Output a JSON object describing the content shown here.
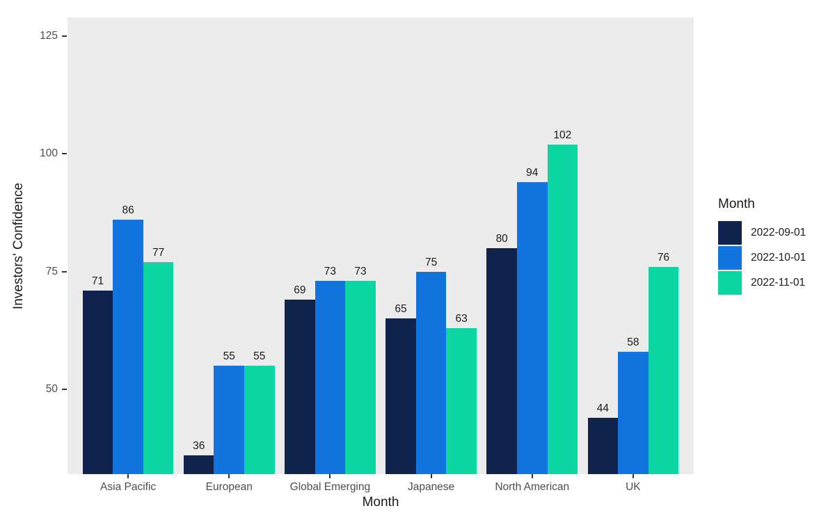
{
  "chart_data": {
    "type": "bar",
    "title": "",
    "xlabel": "Month",
    "ylabel": "Investors' Confidence",
    "legend_title": "Month",
    "legend_position": "right",
    "grid": false,
    "panel_bg": "#EBEBEB",
    "axis_text_color": "#4D4D4D",
    "value_label_color": "#1A1A1A",
    "categories": [
      "Asia Pacific",
      "European",
      "Global Emerging",
      "Japanese",
      "North American",
      "UK"
    ],
    "series": [
      {
        "name": "2022-09-01",
        "color": "#10224E",
        "values": [
          71,
          36,
          69,
          65,
          80,
          44
        ]
      },
      {
        "name": "2022-10-01",
        "color": "#1274DF",
        "values": [
          86,
          55,
          73,
          75,
          94,
          58
        ]
      },
      {
        "name": "2022-11-01",
        "color": "#0CD6A2",
        "values": [
          77,
          55,
          73,
          63,
          102,
          76
        ]
      }
    ],
    "yticks": [
      "50",
      "75",
      "100",
      "125"
    ],
    "ylim": [
      32,
      129
    ]
  }
}
